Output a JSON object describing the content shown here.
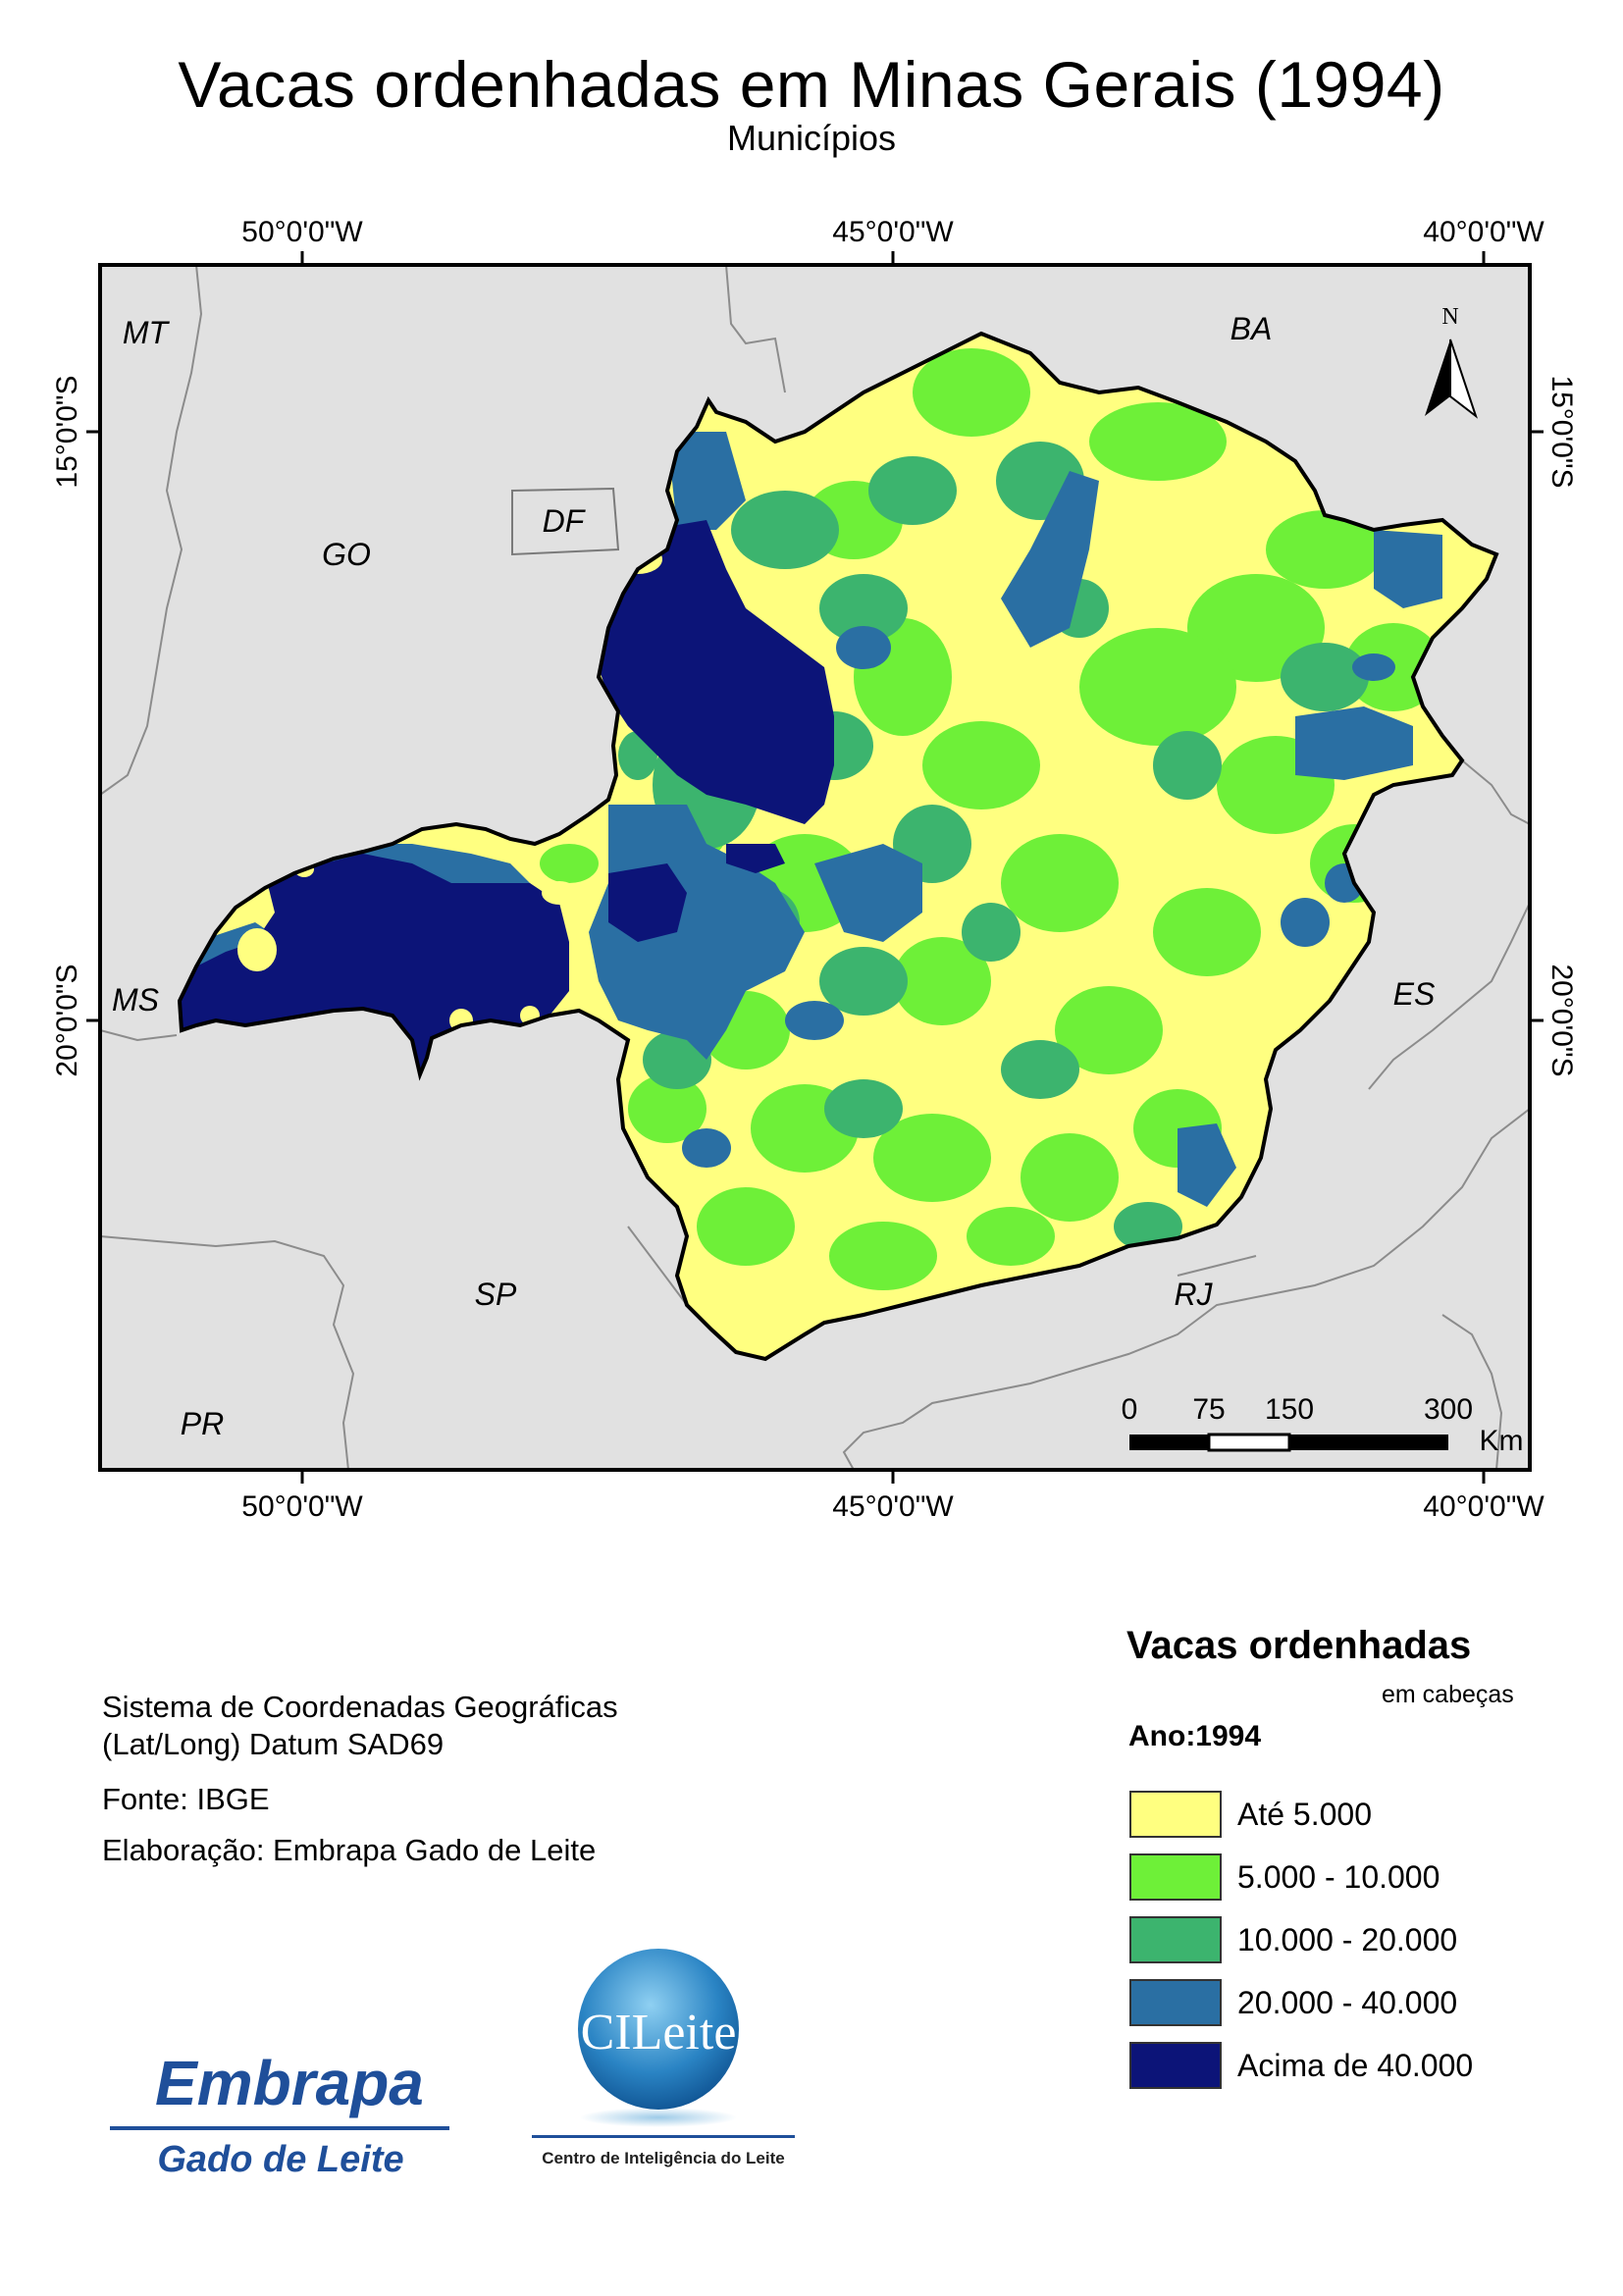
{
  "title": "Vacas ordenhadas em Minas Gerais (1994)",
  "subtitle": "Municípios",
  "map": {
    "lon_labels_top": [
      "50°0'0\"W",
      "45°0'0\"W",
      "40°0'0\"W"
    ],
    "lon_labels_bottom": [
      "50°0'0\"W",
      "45°0'0\"W",
      "40°0'0\"W"
    ],
    "lat_labels_left": [
      "15°0'0\"S",
      "20°0'0\"S"
    ],
    "lat_labels_right": [
      "15°0'0\"S",
      "20°0'0\"S"
    ],
    "states": [
      "MT",
      "BA",
      "GO",
      "DF",
      "MS",
      "ES",
      "SP",
      "RJ",
      "PR"
    ],
    "north_label": "N",
    "scale_ticks": [
      "0",
      "75",
      "150",
      "300"
    ],
    "scale_unit": "Km",
    "background_color": "#e1e1e1",
    "region_name": "Minas Gerais"
  },
  "legend": {
    "title": "Vacas ordenhadas",
    "subtitle": "em cabeças",
    "year": "Ano:1994",
    "classes": [
      {
        "label": "Até 5.000",
        "color": "#ffff80"
      },
      {
        "label": "5.000 - 10.000",
        "color": "#6ef038"
      },
      {
        "label": "10.000 - 20.000",
        "color": "#3cb46e"
      },
      {
        "label": "20.000 - 40.000",
        "color": "#2a6fa3"
      },
      {
        "label": "Acima de 40.000",
        "color": "#0c1478"
      }
    ]
  },
  "info": {
    "crs_line1": "Sistema de Coordenadas Geográficas",
    "crs_line2": "(Lat/Long) Datum SAD69",
    "source": "Fonte: IBGE",
    "author": "Elaboração: Embrapa Gado de Leite"
  },
  "logos": {
    "embrapa_top": "Embrapa",
    "embrapa_bottom": "Gado de Leite",
    "cileite_badge": "CILeite",
    "cileite_caption": "Centro de Inteligência do Leite"
  }
}
